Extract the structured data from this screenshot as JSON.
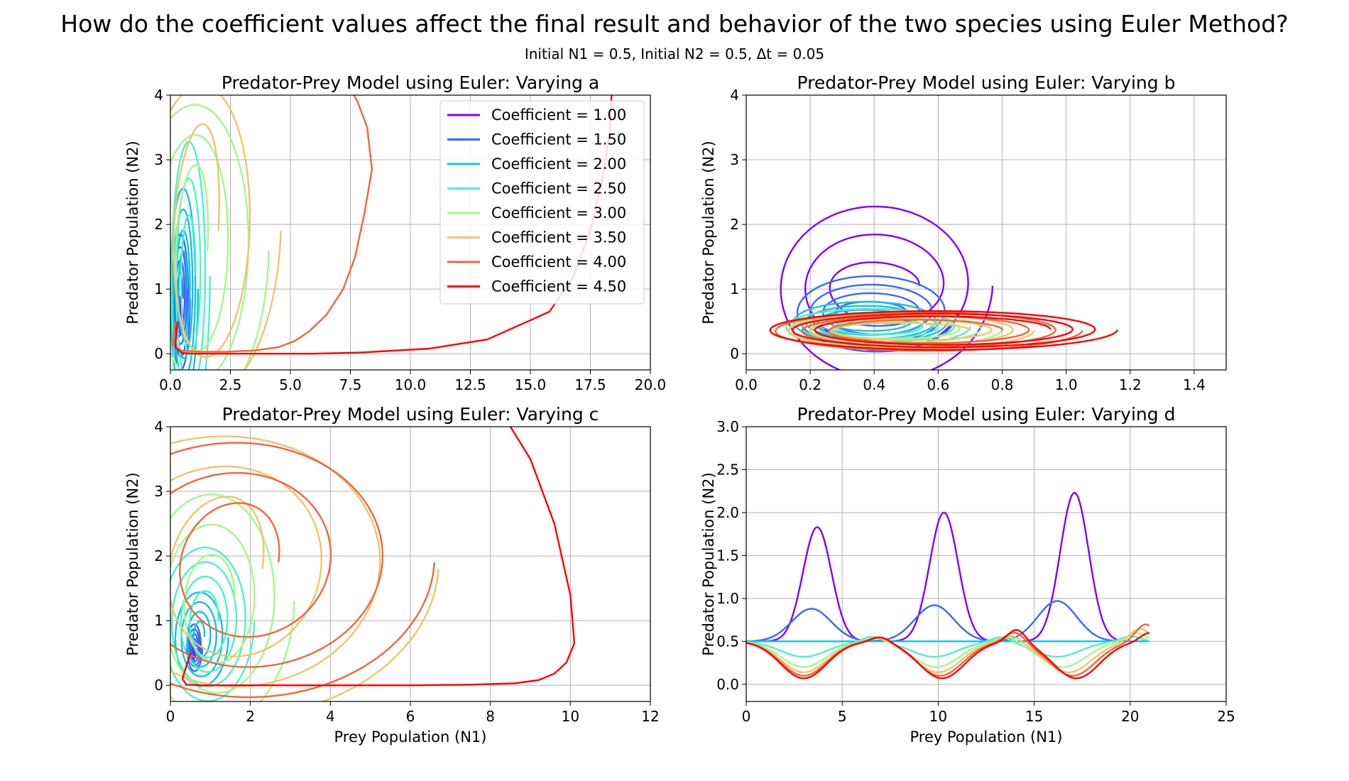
{
  "suptitle": "How do the coefficient values affect the final result and behavior of the two species using Euler Method?",
  "subtitle": "Initial N1 = 0.5, Initial N2 = 0.5, Δt = 0.05",
  "colors": [
    "#8000ff",
    "#3b68f7",
    "#13c1e4",
    "#4cf2c8",
    "#a4f78e",
    "#eec46c",
    "#f0663d",
    "#ff0000"
  ],
  "legend": [
    "Coefficient = 1.00",
    "Coefficient = 1.50",
    "Coefficient = 2.00",
    "Coefficient = 2.50",
    "Coefficient = 3.00",
    "Coefficient = 3.50",
    "Coefficient = 4.00",
    "Coefficient = 4.50"
  ],
  "chart_data": [
    {
      "type": "line",
      "title": "Predator-Prey Model using Euler: Varying a",
      "xlabel": "",
      "ylabel": "Predator Population (N2)",
      "xlim": [
        0,
        20
      ],
      "ylim": [
        -0.25,
        4
      ],
      "xticks": [
        "0.0",
        "2.5",
        "5.0",
        "7.5",
        "10.0",
        "12.5",
        "15.0",
        "17.5",
        "20.0"
      ],
      "yticks": [
        "0",
        "1",
        "2",
        "3",
        "4"
      ],
      "grid": true,
      "legend_position": "upper right",
      "series": [
        {
          "name": "Coefficient = 1.00",
          "shape": "spiral",
          "cx": 0.32,
          "cy": 0.6,
          "rx0": 0.08,
          "ry0": 0.1,
          "rx1": 0.2,
          "ry1": 0.35,
          "skew": 0,
          "turns": 4
        },
        {
          "name": "Coefficient = 1.50",
          "shape": "spiral",
          "cx": 0.42,
          "cy": 0.85,
          "rx0": 0.1,
          "ry0": 0.35,
          "rx1": 0.4,
          "ry1": 1.15,
          "skew": 0,
          "turns": 4
        },
        {
          "name": "Coefficient = 2.00",
          "shape": "spiral",
          "cx": 0.55,
          "cy": 1.0,
          "rx0": 0.15,
          "ry0": 0.5,
          "rx1": 0.6,
          "ry1": 1.8,
          "skew": 0,
          "turns": 4
        },
        {
          "name": "Coefficient = 2.50",
          "shape": "spiral",
          "cx": 0.8,
          "cy": 1.2,
          "rx0": 0.25,
          "ry0": 0.8,
          "rx1": 0.85,
          "ry1": 2.5,
          "skew": 0,
          "turns": 3
        },
        {
          "name": "Coefficient = 3.00",
          "shape": "spiral",
          "cx": 1.1,
          "cy": 1.6,
          "rx0": 0.45,
          "ry0": 1.2,
          "rx1": 3.0,
          "ry1": 2.6,
          "skew": 0,
          "turns": 3
        },
        {
          "name": "Coefficient = 3.50",
          "shape": "spiral",
          "cx": 1.4,
          "cy": 1.9,
          "rx0": 0.6,
          "ry0": 1.5,
          "rx1": 3.2,
          "ry1": 2.7,
          "skew": 0,
          "turns": 2
        },
        {
          "name": "Coefficient = 4.00",
          "shape": "points",
          "x": [
            0.2,
            0.1,
            0.4,
            1.2,
            2.3,
            3.5,
            4.5,
            5.2,
            5.8,
            6.5,
            7.2,
            7.7,
            8.1,
            8.4,
            8.2,
            7.8,
            7.5
          ],
          "y": [
            0.5,
            0.15,
            0.05,
            0.03,
            0.03,
            0.05,
            0.1,
            0.2,
            0.35,
            0.6,
            1.0,
            1.5,
            2.2,
            2.85,
            3.5,
            3.9,
            4.1
          ]
        },
        {
          "name": "Coefficient = 4.50",
          "shape": "points",
          "x": [
            0.3,
            0.2,
            0.5,
            1.0,
            2.0,
            3.0,
            4.0,
            6.0,
            8.0,
            10.8,
            13.2,
            15.8,
            16.8,
            17.5,
            18.0,
            18.3,
            18.4
          ],
          "y": [
            0.5,
            0.1,
            0.01,
            0.0,
            0.0,
            0.0,
            0.0,
            0.0,
            0.02,
            0.08,
            0.22,
            0.65,
            1.2,
            1.9,
            2.7,
            3.4,
            4.1
          ]
        }
      ]
    },
    {
      "type": "line",
      "title": "Predator-Prey Model using Euler: Varying b",
      "xlabel": "",
      "ylabel": "Predator Population (N2)",
      "xlim": [
        0,
        1.5
      ],
      "ylim": [
        -0.25,
        4
      ],
      "xticks": [
        "0.0",
        "0.2",
        "0.4",
        "0.6",
        "0.8",
        "1.0",
        "1.2",
        "1.4"
      ],
      "yticks": [
        "0",
        "1",
        "2",
        "3",
        "4"
      ],
      "grid": true,
      "series": [
        {
          "name": "Coefficient = 1.00",
          "shape": "spiral",
          "cx": 0.42,
          "cy": 1.05,
          "rx0": 0.12,
          "ry0": 0.25,
          "rx1": 0.35,
          "ry1": 1.55,
          "skew": 0,
          "turns": 3
        },
        {
          "name": "Coefficient = 1.50",
          "shape": "spiral",
          "cx": 0.4,
          "cy": 0.65,
          "rx0": 0.1,
          "ry0": 0.12,
          "rx1": 0.26,
          "ry1": 0.65,
          "skew": 0,
          "turns": 4
        },
        {
          "name": "Coefficient = 2.00",
          "shape": "spiral",
          "cx": 0.38,
          "cy": 0.5,
          "rx0": 0.1,
          "ry0": 0.1,
          "rx1": 0.25,
          "ry1": 0.35,
          "skew": 0,
          "turns": 4
        },
        {
          "name": "Coefficient = 2.50",
          "shape": "spiral",
          "cx": 0.4,
          "cy": 0.42,
          "rx0": 0.1,
          "ry0": 0.08,
          "rx1": 0.3,
          "ry1": 0.32,
          "skew": 0,
          "turns": 4
        },
        {
          "name": "Coefficient = 3.00",
          "shape": "spiral",
          "cx": 0.45,
          "cy": 0.38,
          "rx0": 0.15,
          "ry0": 0.1,
          "rx1": 0.35,
          "ry1": 0.3,
          "skew": 0,
          "turns": 3
        },
        {
          "name": "Coefficient = 3.50",
          "shape": "spiral",
          "cx": 0.5,
          "cy": 0.36,
          "rx0": 0.2,
          "ry0": 0.1,
          "rx1": 0.4,
          "ry1": 0.3,
          "skew": 0,
          "turns": 3
        },
        {
          "name": "Coefficient = 4.00",
          "shape": "spiral",
          "cx": 0.55,
          "cy": 0.36,
          "rx0": 0.25,
          "ry0": 0.15,
          "rx1": 0.5,
          "ry1": 0.33,
          "skew": 0,
          "turns": 3
        },
        {
          "name": "Coefficient = 4.50",
          "shape": "spiral",
          "cx": 0.6,
          "cy": 0.37,
          "rx0": 0.35,
          "ry0": 0.2,
          "rx1": 0.56,
          "ry1": 0.32,
          "skew": 0,
          "turns": 3
        }
      ]
    },
    {
      "type": "line",
      "title": "Predator-Prey Model using Euler: Varying c",
      "xlabel": "Prey Population (N1)",
      "ylabel": "Predator Population (N2)",
      "xlim": [
        0,
        12
      ],
      "ylim": [
        -0.25,
        4
      ],
      "xticks": [
        "0",
        "2",
        "4",
        "6",
        "8",
        "10",
        "12"
      ],
      "yticks": [
        "0",
        "1",
        "2",
        "3",
        "4"
      ],
      "grid": true,
      "series": [
        {
          "name": "Coefficient = 1.00",
          "shape": "spiral",
          "cx": 0.55,
          "cy": 0.55,
          "rx0": 0.02,
          "ry0": 0.05,
          "rx1": 0.06,
          "ry1": 0.2,
          "skew": 0,
          "turns": 4
        },
        {
          "name": "Coefficient = 1.50",
          "shape": "spiral",
          "cx": 0.6,
          "cy": 0.6,
          "rx0": 0.05,
          "ry0": 0.1,
          "rx1": 0.2,
          "ry1": 0.4,
          "skew": 0,
          "turns": 4
        },
        {
          "name": "Coefficient = 2.00",
          "shape": "spiral",
          "cx": 0.75,
          "cy": 0.75,
          "rx0": 0.1,
          "ry0": 0.2,
          "rx1": 0.7,
          "ry1": 0.8,
          "skew": 0,
          "turns": 4
        },
        {
          "name": "Coefficient = 2.50",
          "shape": "spiral",
          "cx": 0.9,
          "cy": 1.0,
          "rx0": 0.3,
          "ry0": 0.4,
          "rx1": 1.2,
          "ry1": 1.3,
          "skew": 0,
          "turns": 4
        },
        {
          "name": "Coefficient = 3.00",
          "shape": "spiral",
          "cx": 1.1,
          "cy": 1.3,
          "rx0": 0.5,
          "ry0": 0.6,
          "rx1": 2.0,
          "ry1": 2.0,
          "skew": 0,
          "turns": 3
        },
        {
          "name": "Coefficient = 3.50",
          "shape": "spiral",
          "cx": 1.5,
          "cy": 1.8,
          "rx0": 0.8,
          "ry0": 1.0,
          "rx1": 5.2,
          "ry1": 2.4,
          "skew": 0,
          "turns": 3
        },
        {
          "name": "Coefficient = 4.00",
          "shape": "spiral",
          "cx": 1.8,
          "cy": 1.9,
          "rx0": 0.9,
          "ry0": 0.8,
          "rx1": 4.8,
          "ry1": 2.2,
          "skew": 0,
          "turns": 3
        },
        {
          "name": "Coefficient = 4.50",
          "shape": "points",
          "x": [
            0.5,
            0.3,
            0.4,
            0.8,
            2.0,
            4.0,
            6.0,
            7.5,
            8.6,
            9.2,
            9.6,
            9.9,
            10.1,
            10.0,
            9.6,
            9.0,
            8.4
          ],
          "y": [
            0.5,
            0.1,
            0.01,
            0.0,
            0.0,
            0.0,
            0.0,
            0.01,
            0.03,
            0.08,
            0.18,
            0.35,
            0.65,
            1.4,
            2.5,
            3.5,
            4.1
          ]
        }
      ]
    },
    {
      "type": "line",
      "title": "Predator-Prey Model using Euler: Varying d",
      "xlabel": "Prey Population (N1)",
      "ylabel": "Predator Population (N2)",
      "xlim": [
        0,
        25
      ],
      "ylim": [
        -0.2,
        3.0
      ],
      "xticks": [
        "0",
        "5",
        "10",
        "15",
        "20",
        "25"
      ],
      "yticks": [
        "0.0",
        "0.5",
        "1.0",
        "1.5",
        "2.0",
        "2.5",
        "3.0"
      ],
      "grid": true,
      "series": [
        {
          "name": "Coefficient = 1.00",
          "shape": "wave",
          "peaks": [
            3.7,
            10.3,
            17.1
          ],
          "amps": [
            1.33,
            1.5,
            1.73
          ],
          "width": 1.05,
          "dips": [],
          "depth": 0,
          "xmax": 21.0
        },
        {
          "name": "Coefficient = 1.50",
          "shape": "wave",
          "peaks": [
            3.4,
            9.8,
            16.2
          ],
          "amps": [
            0.38,
            0.42,
            0.47
          ],
          "width": 1.45,
          "dips": [],
          "depth": 0,
          "xmax": 21.0
        },
        {
          "name": "Coefficient = 2.00",
          "shape": "wave",
          "peaks": [],
          "amps": [],
          "width": 1,
          "dips": [],
          "depth": 0,
          "xmax": 21.0
        },
        {
          "name": "Coefficient = 2.50",
          "shape": "wave",
          "peaks": [
            6.6,
            13.3,
            20.0
          ],
          "amps": [
            0.06,
            0.06,
            0.06
          ],
          "width": 0.7,
          "dips": [
            3.0,
            9.8,
            16.2
          ],
          "depth": 0.18,
          "xmax": 21.0
        },
        {
          "name": "Coefficient = 3.00",
          "shape": "wave",
          "peaks": [
            6.8,
            13.6,
            20.3
          ],
          "amps": [
            0.05,
            0.07,
            0.1
          ],
          "width": 0.7,
          "dips": [
            3.0,
            9.9,
            16.5
          ],
          "depth": 0.3,
          "xmax": 21.0
        },
        {
          "name": "Coefficient = 3.50",
          "shape": "wave",
          "peaks": [
            6.9,
            13.8,
            20.5
          ],
          "amps": [
            0.05,
            0.08,
            0.15
          ],
          "width": 0.7,
          "dips": [
            3.0,
            10.0,
            16.8
          ],
          "depth": 0.36,
          "xmax": 21.0
        },
        {
          "name": "Coefficient = 4.00",
          "shape": "wave",
          "peaks": [
            7.0,
            14.0,
            20.8
          ],
          "amps": [
            0.06,
            0.12,
            0.2
          ],
          "width": 0.7,
          "dips": [
            3.0,
            10.1,
            17.0
          ],
          "depth": 0.4,
          "xmax": 21.0
        },
        {
          "name": "Coefficient = 4.50",
          "shape": "wave",
          "peaks": [
            7.0,
            14.1,
            21.0
          ],
          "amps": [
            0.06,
            0.15,
            0.1
          ],
          "width": 0.65,
          "dips": [
            3.0,
            10.2,
            17.2
          ],
          "depth": 0.43,
          "xmax": 21.0
        }
      ]
    }
  ]
}
